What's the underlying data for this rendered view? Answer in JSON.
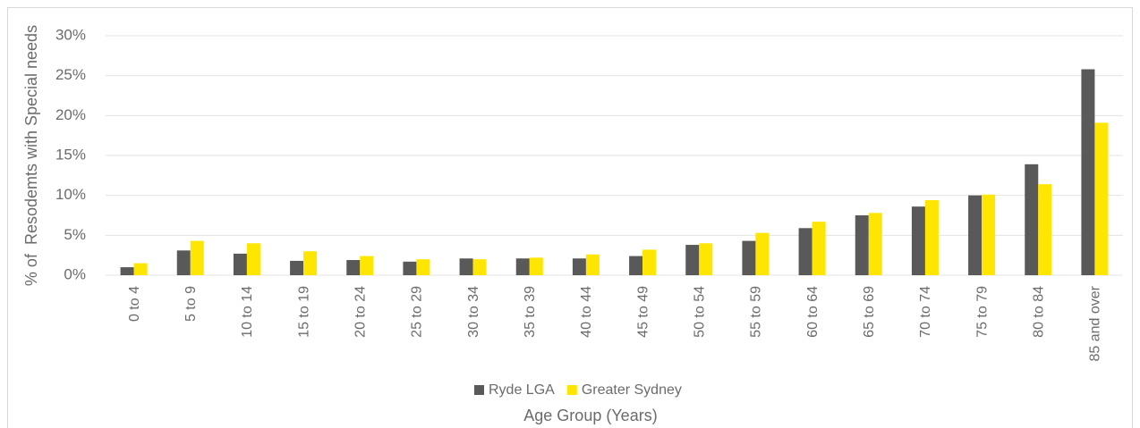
{
  "chart_data": {
    "type": "bar",
    "categories": [
      "0 to 4",
      "5 to 9",
      "10 to 14",
      "15 to 19",
      "20 to 24",
      "25 to 29",
      "30 to 34",
      "35 to 39",
      "40 to 44",
      "45 to 49",
      "50 to 54",
      "55 to 59",
      "60 to 64",
      "65 to 69",
      "70 to 74",
      "75 to 79",
      "80 to 84",
      "85 and over"
    ],
    "series": [
      {
        "name": "Ryde LGA",
        "color": "#595959",
        "values": [
          1.0,
          3.1,
          2.7,
          1.8,
          1.9,
          1.7,
          2.1,
          2.1,
          2.1,
          2.4,
          3.8,
          4.3,
          5.9,
          7.5,
          8.6,
          10.0,
          13.9,
          25.8
        ]
      },
      {
        "name": "Greater Sydney",
        "color": "#ffe600",
        "values": [
          1.5,
          4.3,
          4.0,
          3.0,
          2.4,
          2.0,
          2.0,
          2.2,
          2.6,
          3.2,
          4.0,
          5.3,
          6.7,
          7.8,
          9.4,
          10.1,
          11.4,
          19.1
        ]
      }
    ],
    "xlabel": "Age Group (Years)",
    "ylabel": "% of  Resodemts with Special needs",
    "ylim": [
      0,
      30
    ],
    "yticks": [
      {
        "value": 0,
        "label": "0%"
      },
      {
        "value": 5,
        "label": "5%"
      },
      {
        "value": 10,
        "label": "10%"
      },
      {
        "value": 15,
        "label": "15%"
      },
      {
        "value": 20,
        "label": "20%"
      },
      {
        "value": 25,
        "label": "25%"
      },
      {
        "value": 30,
        "label": "30%"
      }
    ],
    "grid": true,
    "legend": "bottom"
  }
}
